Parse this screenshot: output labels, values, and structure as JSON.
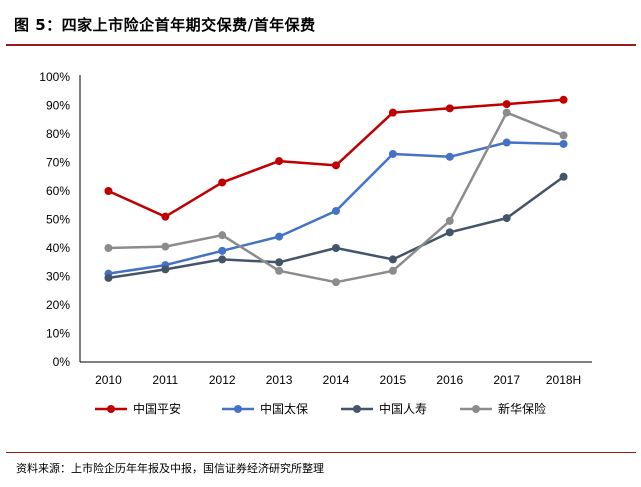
{
  "figure": {
    "title": "图 5：四家上市险企首年期交保费/首年保费",
    "source": "资料来源：上市险企历年年报及中报，国信证券经济研究所整理"
  },
  "chart_data": {
    "type": "line",
    "title": "",
    "xlabel": "",
    "ylabel": "",
    "categories": [
      "2010",
      "2011",
      "2012",
      "2013",
      "2014",
      "2015",
      "2016",
      "2017",
      "2018H"
    ],
    "y_ticks": [
      "0%",
      "10%",
      "20%",
      "30%",
      "40%",
      "50%",
      "60%",
      "70%",
      "80%",
      "90%",
      "100%"
    ],
    "ylim": [
      0,
      100
    ],
    "y_unit": "%",
    "grid": false,
    "legend_position": "bottom",
    "series": [
      {
        "name": "中国平安",
        "color": "#c00000",
        "values": [
          60,
          51,
          63,
          70.5,
          69,
          87.5,
          89,
          90.5,
          92
        ]
      },
      {
        "name": "中国太保",
        "color": "#4472c4",
        "values": [
          31,
          34,
          39,
          44,
          53,
          73,
          72,
          77,
          76.5
        ]
      },
      {
        "name": "中国人寿",
        "color": "#44546a",
        "values": [
          29.5,
          32.5,
          36,
          35,
          40,
          36,
          45.5,
          50.5,
          65
        ]
      },
      {
        "name": "新华保险",
        "color": "#8c8c8c",
        "values": [
          40,
          40.5,
          44.5,
          32,
          28,
          32,
          49.5,
          87.5,
          79.5
        ]
      }
    ]
  }
}
